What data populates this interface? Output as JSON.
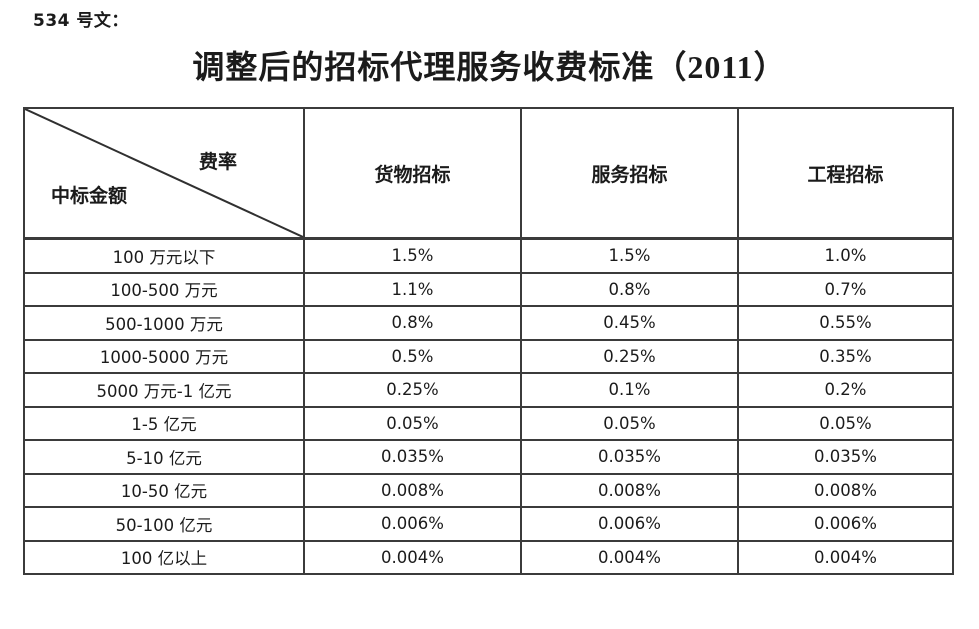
{
  "page": {
    "ref_label": "534 号文：",
    "title": "调整后的招标代理服务收费标准（2011）"
  },
  "table": {
    "corner": {
      "fee_rate_label": "费率",
      "amount_label": "中标金额"
    },
    "column_headers": [
      "货物招标",
      "服务招标",
      "工程招标"
    ],
    "rows": [
      {
        "amount": "100 万元以下",
        "values": [
          "1.5%",
          "1.5%",
          "1.0%"
        ]
      },
      {
        "amount": "100-500 万元",
        "values": [
          "1.1%",
          "0.8%",
          "0.7%"
        ]
      },
      {
        "amount": "500-1000 万元",
        "values": [
          "0.8%",
          "0.45%",
          "0.55%"
        ]
      },
      {
        "amount": "1000-5000 万元",
        "values": [
          "0.5%",
          "0.25%",
          "0.35%"
        ]
      },
      {
        "amount": "5000 万元-1 亿元",
        "values": [
          "0.25%",
          "0.1%",
          "0.2%"
        ]
      },
      {
        "amount": "1-5 亿元",
        "values": [
          "0.05%",
          "0.05%",
          "0.05%"
        ]
      },
      {
        "amount": "5-10 亿元",
        "values": [
          "0.035%",
          "0.035%",
          "0.035%"
        ]
      },
      {
        "amount": "10-50 亿元",
        "values": [
          "0.008%",
          "0.008%",
          "0.008%"
        ]
      },
      {
        "amount": "50-100 亿元",
        "values": [
          "0.006%",
          "0.006%",
          "0.006%"
        ]
      },
      {
        "amount": "100 亿以上",
        "values": [
          "0.004%",
          "0.004%",
          "0.004%"
        ]
      }
    ]
  },
  "colors": {
    "text": "#1b1b1b",
    "border": "#3b3b3b",
    "background": "#ffffff"
  }
}
